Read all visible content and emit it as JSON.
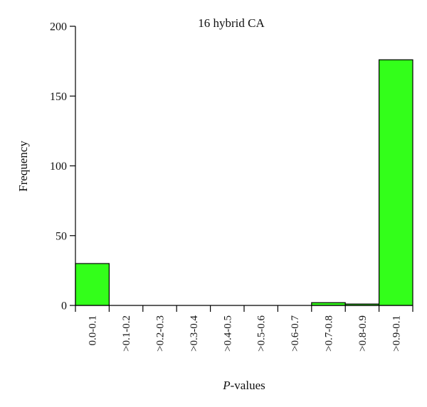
{
  "chart_data": {
    "type": "bar",
    "title": "16 hybrid CA",
    "xlabel_italic": "P",
    "xlabel_rest": "-values",
    "ylabel": "Frequency",
    "ylim": [
      0,
      200
    ],
    "yticks": [
      "0",
      "50",
      "100",
      "150",
      "200"
    ],
    "categories": [
      "0.0-0.1",
      ">0.1-0.2",
      ">0.2-0.3",
      ">0.3-0.4",
      ">0.4-0.5",
      ">0.5-0.6",
      ">0.6-0.7",
      ">0.7-0.8",
      ">0.8-0.9",
      ">0.9-0.1"
    ],
    "values": [
      30,
      0,
      0,
      0,
      0,
      0,
      0,
      2,
      1,
      176
    ],
    "bar_color": "#33ff1a",
    "grid": false,
    "legend": "none"
  }
}
